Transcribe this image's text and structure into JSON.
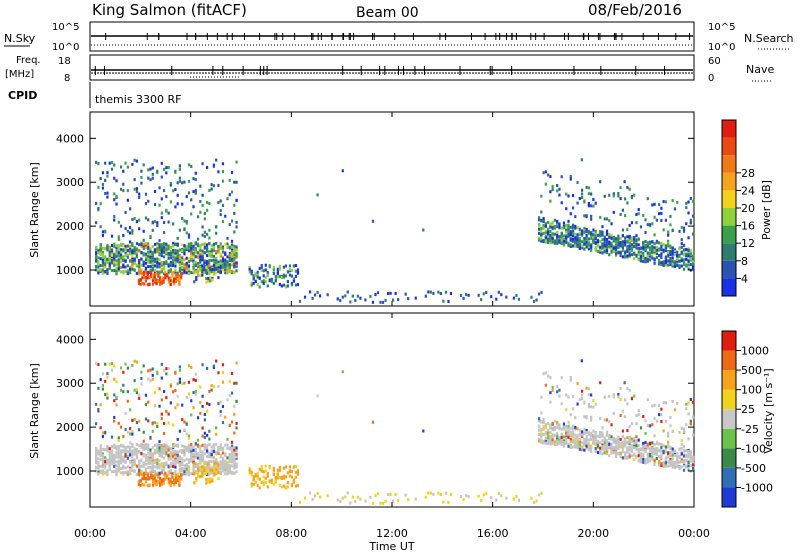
{
  "header": {
    "station": "King Salmon (fitACF)",
    "beam": "Beam 00",
    "date": "08/Feb/2016"
  },
  "top_panels": {
    "nsky_label": "N.Sky",
    "nsky_ticks": [
      "10^5",
      "10^0"
    ],
    "nsearch_label": "N.Search",
    "nsearch_ticks": [
      "10^5",
      "10^0"
    ],
    "freq_label": "Freq.",
    "freq_unit": "[MHz]",
    "freq_ticks": [
      "18",
      "8"
    ],
    "nave_label": "Nave",
    "nave_ticks": [
      "60",
      "0"
    ],
    "cpid_label": "CPID",
    "cpid_text": "themis 3300 RF"
  },
  "chart_data": [
    {
      "type": "heatmap",
      "name": "power",
      "ylabel": "Slant Range [km]",
      "xlabel": "Time UT",
      "x_ticks": [
        "00:00",
        "04:00",
        "08:00",
        "12:00",
        "16:00",
        "20:00",
        "00:00"
      ],
      "xlim_hours": [
        0,
        24
      ],
      "y_ticks": [
        1000,
        2000,
        3000,
        4000
      ],
      "ylim": [
        180,
        4600
      ],
      "colorbar": {
        "label": "Power [dB]",
        "ticks": [
          "4",
          "8",
          "12",
          "16",
          "20",
          "24",
          "28"
        ],
        "colors": [
          "#1a2fe6",
          "#2a54b0",
          "#2e7d6e",
          "#3aa14a",
          "#8fd13a",
          "#f2d21a",
          "#f5a21c",
          "#f07a18",
          "#ea4a12",
          "#e01e10"
        ]
      }
    },
    {
      "type": "heatmap",
      "name": "velocity",
      "ylabel": "Slant Range [km]",
      "xlabel": "Time UT",
      "x_ticks": [
        "00:00",
        "04:00",
        "08:00",
        "12:00",
        "16:00",
        "20:00",
        "00:00"
      ],
      "xlim_hours": [
        0,
        24
      ],
      "y_ticks": [
        1000,
        2000,
        3000,
        4000
      ],
      "ylim": [
        180,
        4600
      ],
      "colorbar": {
        "label": "Velocity [m s⁻¹]",
        "ticks": [
          "1000",
          "500",
          "100",
          "25",
          "-25",
          "-100",
          "-500",
          "-1000"
        ],
        "colors": [
          "#1f3bd6",
          "#2f6fb8",
          "#3a8a4a",
          "#6cc24a",
          "#c8c8c8",
          "#f2d21a",
          "#f5a21c",
          "#ef6a16",
          "#e01e10"
        ]
      }
    }
  ],
  "colors": {
    "ground_scatter": "#c4c4c4",
    "frame": "#000000"
  }
}
